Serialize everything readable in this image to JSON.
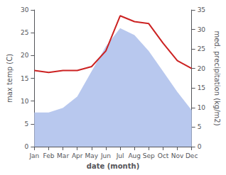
{
  "chart_data": {
    "type": "line",
    "xlabel": "date (month)",
    "ylabel": "max temp (C)",
    "y2label": "med. precipitation (kg/m2)",
    "categories": [
      "Jan",
      "Feb",
      "Mar",
      "Apr",
      "May",
      "Jun",
      "Jul",
      "Aug",
      "Sep",
      "Oct",
      "Nov",
      "Dec"
    ],
    "series": [
      {
        "type": "area",
        "color": "#b8c8ee",
        "values": [
          7.5,
          7.5,
          8.5,
          11.0,
          16.5,
          22.0,
          26.0,
          24.5,
          21.0,
          16.5,
          12.0,
          8.0
        ]
      },
      {
        "type": "line",
        "color": "#cc2222",
        "axis": "y2",
        "values": [
          19.5,
          19.0,
          19.5,
          19.5,
          20.5,
          24.5,
          33.5,
          32.0,
          31.5,
          26.5,
          22.0,
          20.0
        ]
      }
    ],
    "ylim": [
      0,
      30
    ],
    "yticks": [
      0,
      5,
      10,
      15,
      20,
      25,
      30
    ],
    "y2lim": [
      0,
      35
    ],
    "y2ticks": [
      0,
      5,
      10,
      15,
      20,
      25,
      30,
      35
    ],
    "grid": false
  }
}
